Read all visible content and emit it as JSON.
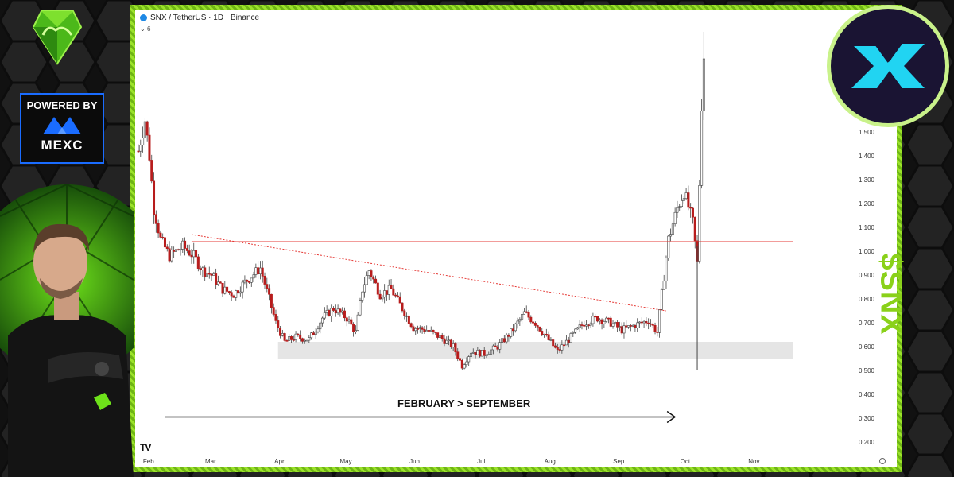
{
  "header": {
    "title": "SNX / TetherUS · 1D · Binance",
    "indicator_count": "6"
  },
  "branding": {
    "powered_by": "POWERED BY",
    "sponsor": "MEXC",
    "ticker": "$SNX",
    "chart_provider_logo": "TV",
    "accent_color": "#8ad11a",
    "sponsor_color": "#1a6cff"
  },
  "chart_data": {
    "type": "candlestick",
    "title": "SNX / TetherUS · 1D · Binance",
    "annotation": "FEBRUARY > SEPTEMBER",
    "x_tick_labels": [
      "Feb",
      "Mar",
      "Apr",
      "May",
      "Jun",
      "Jul",
      "Aug",
      "Sep",
      "Oct",
      "Nov"
    ],
    "y_tick_labels": [
      "0.200",
      "0.300",
      "0.400",
      "0.500",
      "0.600",
      "0.700",
      "0.800",
      "0.900",
      "1.000",
      "1.100",
      "1.200",
      "1.300",
      "1.400",
      "1.500"
    ],
    "ylim": [
      0.13,
      1.98
    ],
    "y_ticks": [
      0.2,
      0.3,
      0.4,
      0.5,
      0.6,
      0.7,
      0.8,
      0.9,
      1.0,
      1.1,
      1.2,
      1.3,
      1.4,
      1.5
    ],
    "x_start": "2025-01-31",
    "x_end": "2025-11-22",
    "resistance_level": 1.04,
    "support_zone": [
      0.55,
      0.62
    ],
    "trendline": {
      "from": [
        "2025-02-24",
        1.07
      ],
      "to": [
        "2025-09-26",
        0.75
      ]
    },
    "arrow": {
      "from": "2025-02-12",
      "to": "2025-09-30",
      "y": 0.305
    },
    "path_points": [
      [
        "2025-01-31",
        1.42
      ],
      [
        "2025-02-03",
        1.55
      ],
      [
        "2025-02-05",
        1.4
      ],
      [
        "2025-02-07",
        1.18
      ],
      [
        "2025-02-10",
        1.05
      ],
      [
        "2025-02-14",
        0.98
      ],
      [
        "2025-02-20",
        1.02
      ],
      [
        "2025-02-25",
        0.98
      ],
      [
        "2025-03-01",
        0.92
      ],
      [
        "2025-03-05",
        0.9
      ],
      [
        "2025-03-10",
        0.84
      ],
      [
        "2025-03-15",
        0.82
      ],
      [
        "2025-03-20",
        0.87
      ],
      [
        "2025-03-27",
        0.93
      ],
      [
        "2025-03-31",
        0.8
      ],
      [
        "2025-04-03",
        0.7
      ],
      [
        "2025-04-07",
        0.62
      ],
      [
        "2025-04-12",
        0.64
      ],
      [
        "2025-04-18",
        0.63
      ],
      [
        "2025-04-24",
        0.72
      ],
      [
        "2025-04-29",
        0.76
      ],
      [
        "2025-05-05",
        0.72
      ],
      [
        "2025-05-09",
        0.66
      ],
      [
        "2025-05-12",
        0.84
      ],
      [
        "2025-05-15",
        0.92
      ],
      [
        "2025-05-20",
        0.82
      ],
      [
        "2025-05-25",
        0.84
      ],
      [
        "2025-05-30",
        0.76
      ],
      [
        "2025-06-04",
        0.68
      ],
      [
        "2025-06-10",
        0.67
      ],
      [
        "2025-06-16",
        0.64
      ],
      [
        "2025-06-22",
        0.6
      ],
      [
        "2025-06-26",
        0.52
      ],
      [
        "2025-06-30",
        0.58
      ],
      [
        "2025-07-06",
        0.57
      ],
      [
        "2025-07-12",
        0.6
      ],
      [
        "2025-07-18",
        0.66
      ],
      [
        "2025-07-24",
        0.74
      ],
      [
        "2025-07-29",
        0.7
      ],
      [
        "2025-08-03",
        0.64
      ],
      [
        "2025-08-08",
        0.58
      ],
      [
        "2025-08-14",
        0.64
      ],
      [
        "2025-08-20",
        0.7
      ],
      [
        "2025-08-26",
        0.72
      ],
      [
        "2025-09-01",
        0.7
      ],
      [
        "2025-09-06",
        0.67
      ],
      [
        "2025-09-12",
        0.69
      ],
      [
        "2025-09-18",
        0.71
      ],
      [
        "2025-09-22",
        0.66
      ],
      [
        "2025-09-24",
        0.82
      ],
      [
        "2025-09-27",
        1.05
      ],
      [
        "2025-10-01",
        1.18
      ],
      [
        "2025-10-04",
        1.25
      ],
      [
        "2025-10-08",
        1.12
      ],
      [
        "2025-10-10",
        0.95
      ],
      [
        "2025-10-12",
        1.62
      ],
      [
        "2025-10-13",
        1.82
      ]
    ]
  }
}
